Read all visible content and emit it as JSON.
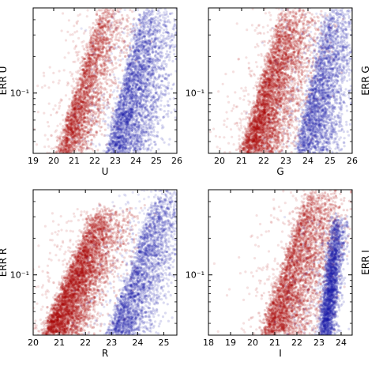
{
  "chart_data": [
    {
      "type": "scatter",
      "xlabel": "U",
      "ylabel": "ERR U",
      "xlim": [
        19,
        26
      ],
      "ylim": [
        0.032,
        0.5
      ],
      "y_scale": "log",
      "xticks": [
        "19",
        "20",
        "21",
        "22",
        "23",
        "24",
        "25",
        "26"
      ],
      "yticks": [
        {
          "value": 0.1,
          "label": "10⁻¹"
        }
      ],
      "series": [
        {
          "color": "#aa0000",
          "edge": [
            [
              20.2,
              0.032
            ],
            [
              22.3,
              0.5
            ]
          ],
          "width": 1.3,
          "density": 1.0
        },
        {
          "color": "#1a1aaa",
          "edge": [
            [
              22.6,
              0.032
            ],
            [
              24.3,
              0.5
            ]
          ],
          "width": 1.8,
          "density": 1.2
        }
      ]
    },
    {
      "type": "scatter",
      "xlabel": "G",
      "ylabel": "ERR G",
      "xlim": [
        19.5,
        26
      ],
      "ylim": [
        0.032,
        0.5
      ],
      "y_scale": "log",
      "xticks": [
        "20",
        "21",
        "22",
        "23",
        "24",
        "25",
        "26"
      ],
      "yticks": [
        {
          "value": 0.1,
          "label": "10⁻¹"
        }
      ],
      "series": [
        {
          "color": "#aa0000",
          "edge": [
            [
              21.0,
              0.032
            ],
            [
              22.9,
              0.5
            ]
          ],
          "width": 1.6,
          "density": 1.6
        },
        {
          "color": "#1a1aaa",
          "edge": [
            [
              23.5,
              0.032
            ],
            [
              24.9,
              0.5
            ]
          ],
          "width": 1.5,
          "density": 1.0
        }
      ]
    },
    {
      "type": "scatter",
      "xlabel": "R",
      "ylabel": "ERR R",
      "xlim": [
        20,
        25.5
      ],
      "ylim": [
        0.032,
        0.5
      ],
      "y_scale": "log",
      "xticks": [
        "20",
        "21",
        "22",
        "23",
        "24",
        "25"
      ],
      "yticks": [
        {
          "value": 0.1,
          "label": "10⁻¹"
        }
      ],
      "series": [
        {
          "color": "#aa0000",
          "edge": [
            [
              20.4,
              0.032
            ],
            [
              22.4,
              0.35
            ]
          ],
          "width": 1.3,
          "density": 1.8
        },
        {
          "color": "#1a1aaa",
          "edge": [
            [
              22.9,
              0.032
            ],
            [
              24.8,
              0.5
            ]
          ],
          "width": 1.2,
          "density": 1.0
        }
      ]
    },
    {
      "type": "scatter",
      "xlabel": "I",
      "ylabel": "ERR I",
      "xlim": [
        18,
        24.5
      ],
      "ylim": [
        0.032,
        0.5
      ],
      "y_scale": "log",
      "xticks": [
        "18",
        "19",
        "20",
        "21",
        "22",
        "23",
        "24"
      ],
      "yticks": [
        {
          "value": 0.1,
          "label": "10⁻¹"
        }
      ],
      "series": [
        {
          "color": "#aa0000",
          "edge": [
            [
              20.4,
              0.032
            ],
            [
              22.5,
              0.5
            ]
          ],
          "width": 1.7,
          "density": 1.4
        },
        {
          "color": "#1a1aaa",
          "edge": [
            [
              23.1,
              0.032
            ],
            [
              23.7,
              0.3
            ]
          ],
          "width": 0.45,
          "density": 0.9
        }
      ]
    }
  ]
}
